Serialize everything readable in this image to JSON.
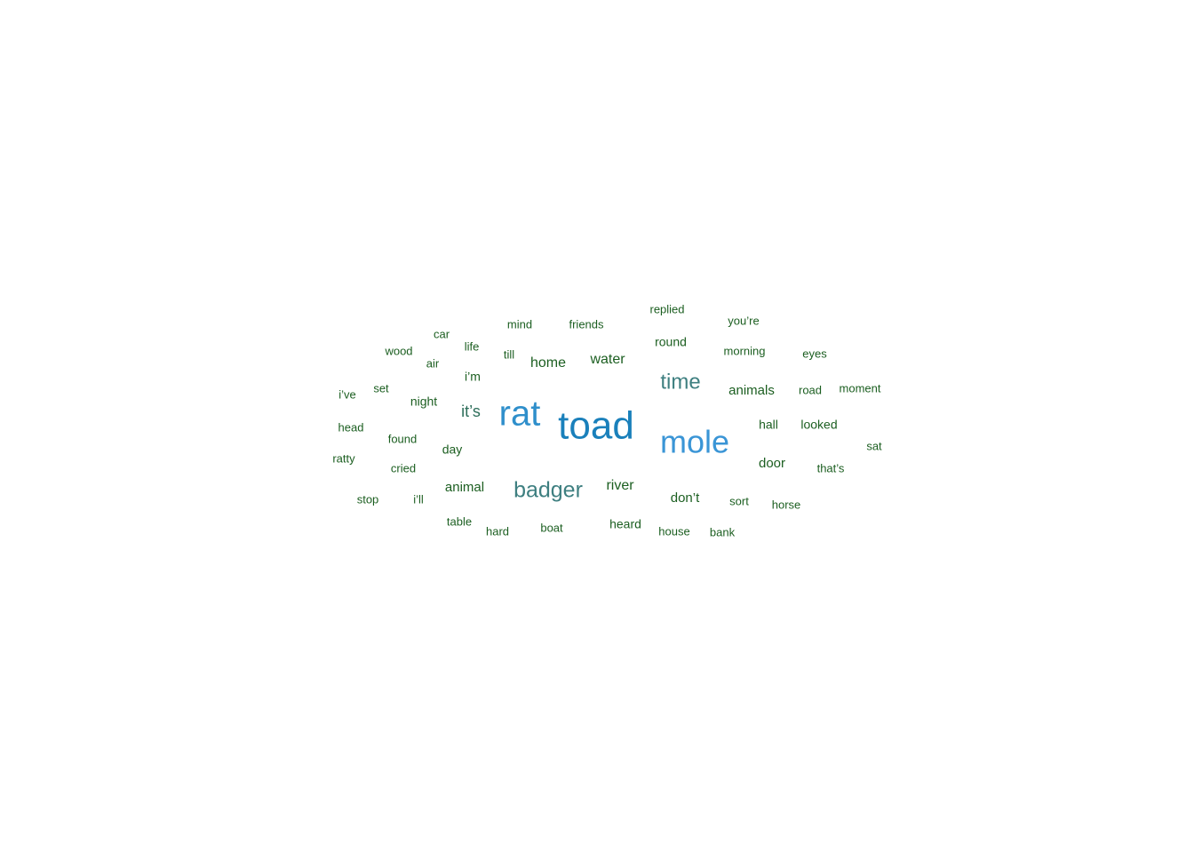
{
  "chart_data": {
    "type": "wordcloud",
    "title": "",
    "colors": {
      "top1": "#1a80bb",
      "top2": "#3a95d6",
      "top3": "#2f8fcb",
      "mid": "#3e7f80",
      "low": "#2d6e5a",
      "base": "#1b5e20"
    },
    "words": [
      {
        "text": "toad",
        "weight": 100
      },
      {
        "text": "mole",
        "weight": 82
      },
      {
        "text": "rat",
        "weight": 80
      },
      {
        "text": "badger",
        "weight": 45
      },
      {
        "text": "time",
        "weight": 40
      },
      {
        "text": "it’s",
        "weight": 34
      },
      {
        "text": "water",
        "weight": 30
      },
      {
        "text": "home",
        "weight": 30
      },
      {
        "text": "river",
        "weight": 28
      },
      {
        "text": "animal",
        "weight": 26
      },
      {
        "text": "animals",
        "weight": 26
      },
      {
        "text": "don’t",
        "weight": 26
      },
      {
        "text": "door",
        "weight": 26
      },
      {
        "text": "round",
        "weight": 25
      },
      {
        "text": "day",
        "weight": 25
      },
      {
        "text": "night",
        "weight": 24
      },
      {
        "text": "i’m",
        "weight": 24
      },
      {
        "text": "hall",
        "weight": 23
      },
      {
        "text": "looked",
        "weight": 23
      },
      {
        "text": "heard",
        "weight": 23
      },
      {
        "text": "found",
        "weight": 22
      },
      {
        "text": "till",
        "weight": 22
      },
      {
        "text": "friends",
        "weight": 21
      },
      {
        "text": "morning",
        "weight": 21
      },
      {
        "text": "sort",
        "weight": 21
      },
      {
        "text": "cried",
        "weight": 21
      },
      {
        "text": "wood",
        "weight": 20
      },
      {
        "text": "house",
        "weight": 20
      },
      {
        "text": "boat",
        "weight": 20
      },
      {
        "text": "mind",
        "weight": 20
      },
      {
        "text": "that’s",
        "weight": 20
      },
      {
        "text": "life",
        "weight": 19
      },
      {
        "text": "air",
        "weight": 19
      },
      {
        "text": "head",
        "weight": 19
      },
      {
        "text": "road",
        "weight": 19
      },
      {
        "text": "set",
        "weight": 19
      },
      {
        "text": "table",
        "weight": 19
      },
      {
        "text": "hard",
        "weight": 19
      },
      {
        "text": "replied",
        "weight": 19
      },
      {
        "text": "i’ve",
        "weight": 19
      },
      {
        "text": "ratty",
        "weight": 18
      },
      {
        "text": "horse",
        "weight": 18
      },
      {
        "text": "moment",
        "weight": 18
      },
      {
        "text": "bank",
        "weight": 18
      },
      {
        "text": "eyes",
        "weight": 18
      },
      {
        "text": "i’ll",
        "weight": 18
      },
      {
        "text": "you’re",
        "weight": 17
      },
      {
        "text": "sat",
        "weight": 17
      },
      {
        "text": "car",
        "weight": 17
      },
      {
        "text": "stop",
        "weight": 17
      }
    ]
  }
}
